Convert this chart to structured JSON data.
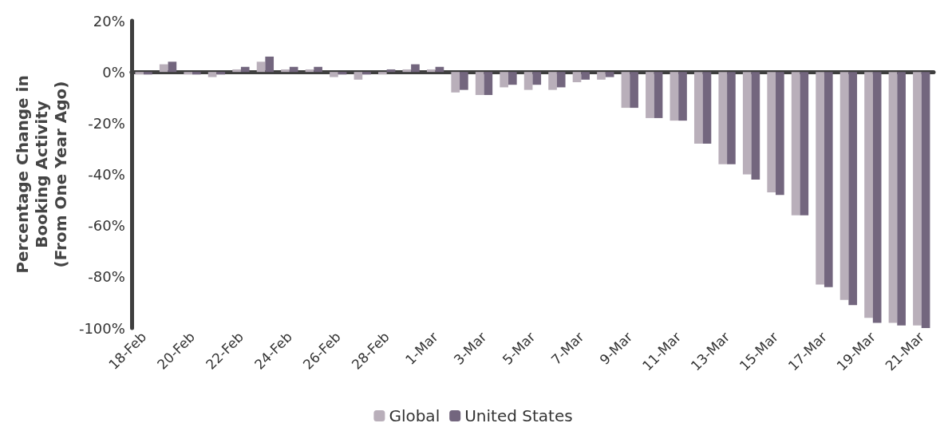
{
  "chart_data": {
    "type": "bar",
    "ylabel": "Percentage Change in\nBooking Activity\n(From One Year Ago)",
    "categories": [
      "18-Feb",
      null,
      "20-Feb",
      null,
      "22-Feb",
      null,
      "24-Feb",
      null,
      "26-Feb",
      null,
      "28-Feb",
      null,
      "1-Mar",
      null,
      "3-Mar",
      null,
      "5-Mar",
      null,
      "7-Mar",
      null,
      "9-Mar",
      null,
      "11-Mar",
      null,
      "13-Mar",
      null,
      "15-Mar",
      null,
      "17-Mar",
      null,
      "19-Mar",
      null,
      "21-Mar"
    ],
    "series": [
      {
        "name": "Global",
        "color": "#b9afba",
        "values": [
          -1,
          3,
          -1,
          -2,
          1,
          4,
          1,
          1,
          -2,
          -3,
          -1,
          1,
          1,
          -8,
          -9,
          -6,
          -7,
          -7,
          -4,
          -3,
          -14,
          -18,
          -19,
          -28,
          -36,
          -40,
          -47,
          -56,
          -83,
          -89,
          -96,
          -98,
          -99
        ]
      },
      {
        "name": "United States",
        "color": "#73667e",
        "values": [
          -1,
          4,
          -1,
          -1,
          2,
          6,
          2,
          2,
          -1,
          -1,
          1,
          3,
          2,
          -7,
          -9,
          -5,
          -5,
          -6,
          -3,
          -2,
          -14,
          -18,
          -19,
          -28,
          -36,
          -42,
          -48,
          -56,
          -84,
          -91,
          -98,
          -99,
          -100
        ]
      }
    ],
    "ylim": [
      -100,
      20
    ],
    "yticks": [
      {
        "value": -100,
        "label": "-100%"
      },
      {
        "value": -80,
        "label": "-80%"
      },
      {
        "value": -60,
        "label": "-60%"
      },
      {
        "value": -40,
        "label": "-40%"
      },
      {
        "value": -20,
        "label": "-20%"
      },
      {
        "value": 0,
        "label": "0%"
      },
      {
        "value": 20,
        "label": "20%"
      }
    ],
    "legend": "bottom"
  }
}
